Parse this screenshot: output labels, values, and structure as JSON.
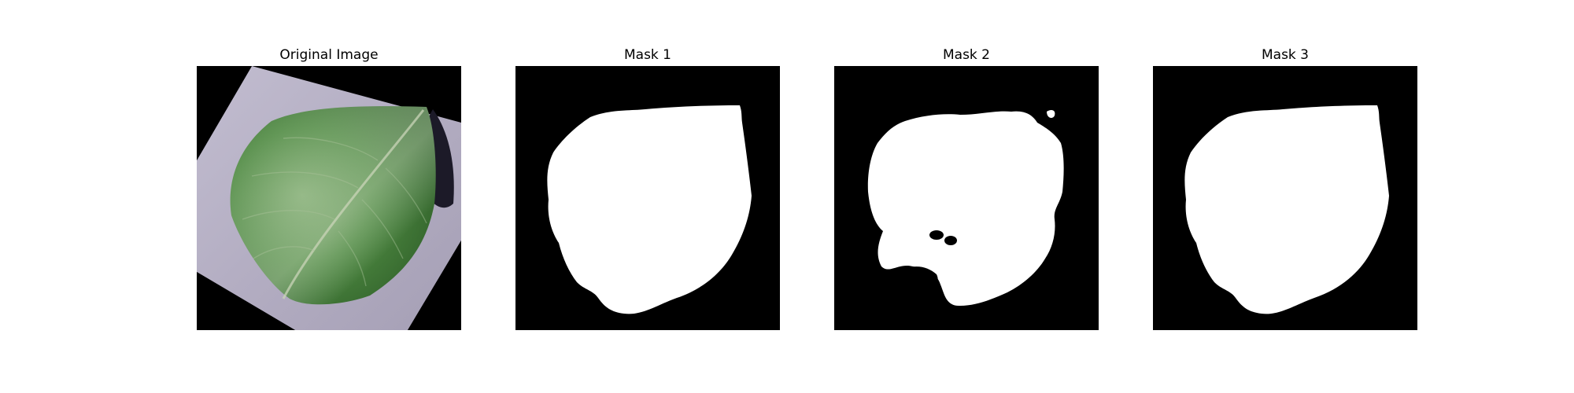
{
  "panels": [
    {
      "title": "Original Image"
    },
    {
      "title": "Mask 1"
    },
    {
      "title": "Mask 2"
    },
    {
      "title": "Mask 3"
    }
  ],
  "colors": {
    "page_background": "#ffffff",
    "image_background": "#000000",
    "mask_foreground": "#ffffff",
    "paper": "#b3adc2",
    "leaf": "#4f8a42",
    "leaf_shadow": "#1c1a28"
  },
  "icons": {
    "original": "leaf-photo",
    "masks": "segmentation-mask"
  }
}
